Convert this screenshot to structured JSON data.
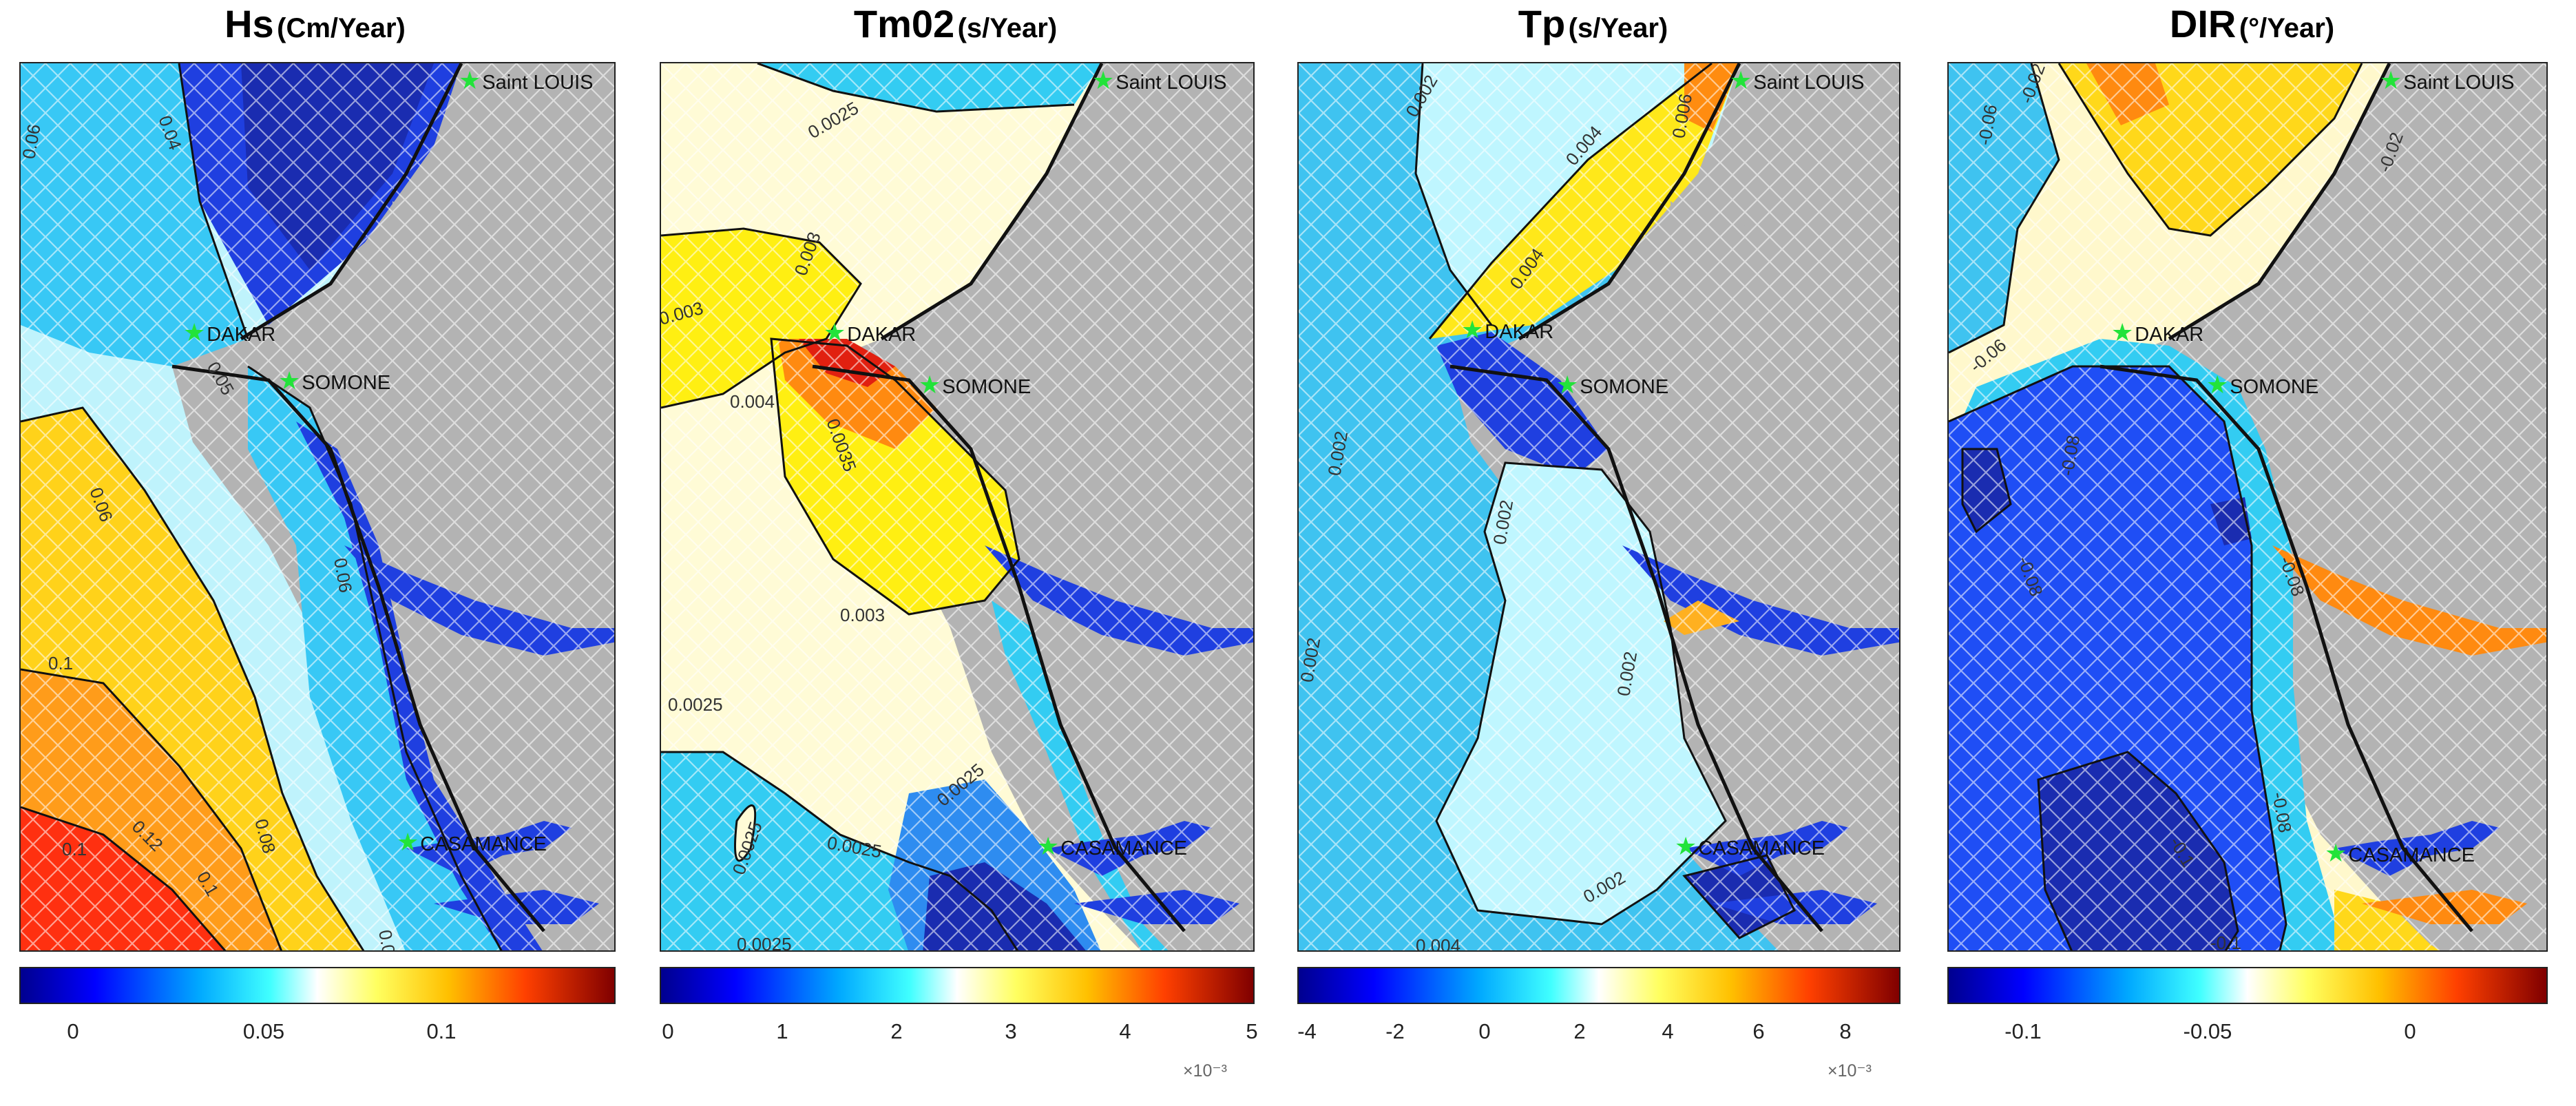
{
  "panels": [
    {
      "id": "hs",
      "title_main": "Hs",
      "title_unit": "(Cm/Year)",
      "colorbar": {
        "ticks": [
          "0",
          "0.05",
          "0.1"
        ],
        "exponent": ""
      },
      "sites": [
        "Saint LOUIS",
        "DAKAR",
        "SOMONE",
        "CASAMANCE"
      ],
      "contour_labels": [
        "0.04",
        "0.06",
        "0.05",
        "0.06",
        "0.06",
        "0.08",
        "0.1",
        "0.1",
        "0.12",
        "0.1",
        "0.06"
      ]
    },
    {
      "id": "tm02",
      "title_main": "Tm02",
      "title_unit": "(s/Year)",
      "colorbar": {
        "ticks": [
          "0",
          "1",
          "2",
          "3",
          "4",
          "5"
        ],
        "exponent": "×10⁻³"
      },
      "sites": [
        "Saint LOUIS",
        "DAKAR",
        "SOMONE",
        "CASAMANCE"
      ],
      "contour_labels": [
        "0.0025",
        "0.003",
        "0.003",
        "0.004",
        "0.0035",
        "0.003",
        "0.0025",
        "0.0025",
        "0.0025",
        "0.0025",
        "0.0025"
      ]
    },
    {
      "id": "tp",
      "title_main": "Tp",
      "title_unit": "(s/Year)",
      "colorbar": {
        "ticks": [
          "-4",
          "-2",
          "0",
          "2",
          "4",
          "6",
          "8"
        ],
        "exponent": "×10⁻³"
      },
      "sites": [
        "Saint LOUIS",
        "DAKAR",
        "SOMONE",
        "CASAMANCE"
      ],
      "contour_labels": [
        "0.002",
        "0.004",
        "0.006",
        "0.004",
        "0.002",
        "0.002",
        "0.002",
        "0.002",
        "0.004",
        "0.002"
      ]
    },
    {
      "id": "dir",
      "title_main": "DIR",
      "title_unit": "(°/Year)",
      "colorbar": {
        "ticks": [
          "-0.1",
          "-0.05",
          "0"
        ],
        "exponent": ""
      },
      "sites": [
        "Saint LOUIS",
        "DAKAR",
        "SOMONE",
        "CASAMANCE"
      ],
      "contour_labels": [
        "-0.06",
        "-0.02",
        "-0.02",
        "-0.06",
        "-0.08",
        "-0.08",
        "-0.1",
        "-0.08",
        "-0.08",
        "-0.1"
      ]
    }
  ],
  "colors": {
    "land": "#b3b3b3",
    "site_marker": "#22e33a",
    "jet": [
      "#00008f",
      "#0040ff",
      "#00bfff",
      "#bff6ff",
      "#fffde0",
      "#ffff00",
      "#ff8c00",
      "#ff2000",
      "#800000"
    ]
  }
}
